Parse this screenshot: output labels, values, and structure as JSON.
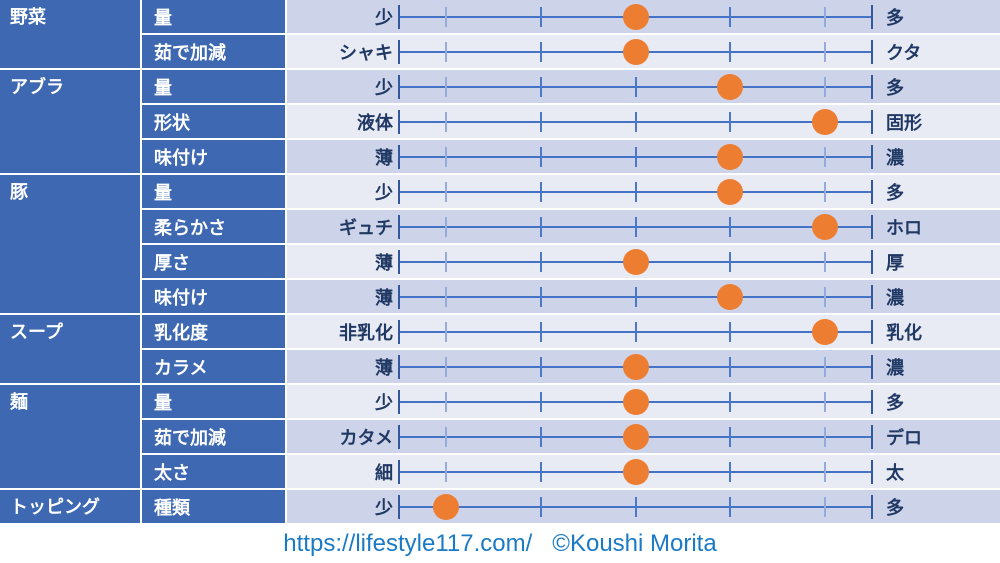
{
  "colors": {
    "header_blue": "#3E69B2",
    "band_dark": "#CDD3E8",
    "band_light": "#E9EBF4",
    "track_blue": "#4472C4",
    "endpoint_tick_blue": "#33589E",
    "mid_tick_blue": "#4C78C8",
    "minor_tick_blue": "#96ABDC",
    "dot_orange": "#ED7D31",
    "scale_label_navy": "#1F3864",
    "footer_blue": "#1B7AC5"
  },
  "chart_data": {
    "type": "dot-rating-table",
    "scale": {
      "min": 1,
      "max": 5,
      "tick_marks_percent": [
        0,
        10,
        30,
        50,
        70,
        90,
        100
      ]
    },
    "groups": [
      {
        "name": "野菜",
        "rows": [
          {
            "attribute": "量",
            "left": "少",
            "right": "多",
            "value": 3
          },
          {
            "attribute": "茹で加減",
            "left": "シャキ",
            "right": "クタ",
            "value": 3
          }
        ]
      },
      {
        "name": "アブラ",
        "rows": [
          {
            "attribute": "量",
            "left": "少",
            "right": "多",
            "value": 4
          },
          {
            "attribute": "形状",
            "left": "液体",
            "right": "固形",
            "value": 5
          },
          {
            "attribute": "味付け",
            "left": "薄",
            "right": "濃",
            "value": 4
          }
        ]
      },
      {
        "name": "豚",
        "rows": [
          {
            "attribute": "量",
            "left": "少",
            "right": "多",
            "value": 4
          },
          {
            "attribute": "柔らかさ",
            "left": "ギュチ",
            "right": "ホロ",
            "value": 5
          },
          {
            "attribute": "厚さ",
            "left": "薄",
            "right": "厚",
            "value": 3
          },
          {
            "attribute": "味付け",
            "left": "薄",
            "right": "濃",
            "value": 4
          }
        ]
      },
      {
        "name": "スープ",
        "rows": [
          {
            "attribute": "乳化度",
            "left": "非乳化",
            "right": "乳化",
            "value": 5
          },
          {
            "attribute": "カラメ",
            "left": "薄",
            "right": "濃",
            "value": 3
          }
        ]
      },
      {
        "name": "麺",
        "rows": [
          {
            "attribute": "量",
            "left": "少",
            "right": "多",
            "value": 3
          },
          {
            "attribute": "茹で加減",
            "left": "カタメ",
            "right": "デロ",
            "value": 3
          },
          {
            "attribute": "太さ",
            "left": "細",
            "right": "太",
            "value": 3
          }
        ]
      },
      {
        "name": "トッピング",
        "rows": [
          {
            "attribute": "種類",
            "left": "少",
            "right": "多",
            "value": 1
          }
        ]
      }
    ]
  },
  "footer": {
    "url": "https://lifestyle117.com/",
    "credit": "©Koushi Morita"
  }
}
